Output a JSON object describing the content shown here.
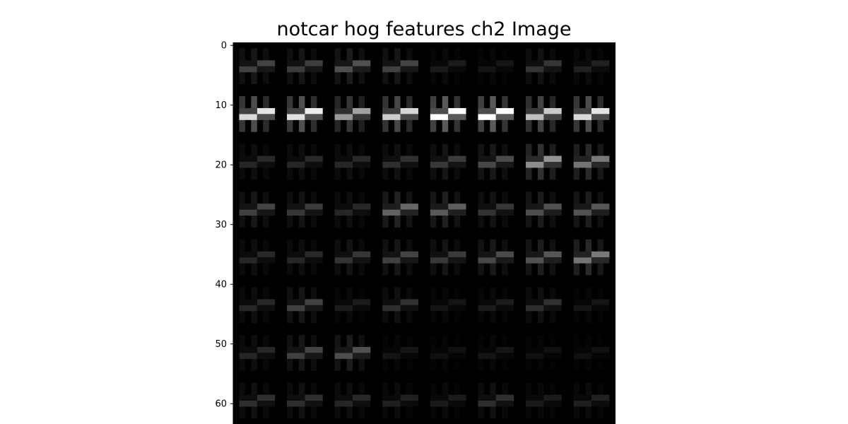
{
  "chart_data": {
    "type": "heatmap",
    "title": "notcar hog features ch2 Image",
    "xlabel": "",
    "ylabel": "",
    "colormap": "gray",
    "ylim": [
      64,
      0
    ],
    "ytick_labels": [
      "0",
      "10",
      "20",
      "30",
      "40",
      "50",
      "60"
    ],
    "yticks": [
      0,
      10,
      20,
      30,
      40,
      50,
      60
    ],
    "visible_rows": 64,
    "grid": false,
    "cell_intensity": [
      [
        0.25,
        0.23,
        0.3,
        0.25,
        0.1,
        0.08,
        0.2,
        0.12
      ],
      [
        0.85,
        0.88,
        0.6,
        0.8,
        1.0,
        1.0,
        0.75,
        0.85
      ],
      [
        0.15,
        0.15,
        0.15,
        0.18,
        0.22,
        0.28,
        0.55,
        0.45
      ],
      [
        0.25,
        0.22,
        0.15,
        0.38,
        0.35,
        0.2,
        0.3,
        0.32
      ],
      [
        0.15,
        0.15,
        0.2,
        0.25,
        0.22,
        0.28,
        0.32,
        0.45
      ],
      [
        0.15,
        0.25,
        0.1,
        0.18,
        0.08,
        0.1,
        0.18,
        0.08
      ],
      [
        0.15,
        0.25,
        0.3,
        0.08,
        0.06,
        0.08,
        0.06,
        0.06
      ],
      [
        0.18,
        0.18,
        0.15,
        0.12,
        0.1,
        0.18,
        0.1,
        0.12
      ]
    ]
  }
}
